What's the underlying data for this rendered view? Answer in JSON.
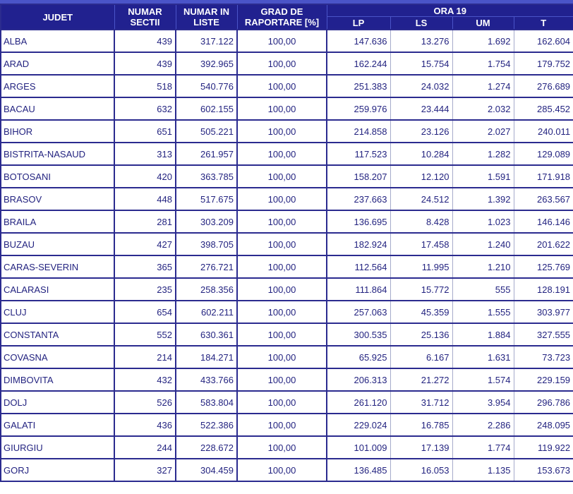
{
  "colors": {
    "header_bg": "#21218F",
    "accent_blue": "#4A54C8",
    "row_border_navy": "#2B2B8F",
    "light_divider": "#A6ABCB",
    "data_text": "#232380"
  },
  "table": {
    "headers": {
      "judet": "JUDET",
      "sectii": "NUMAR SECTII",
      "liste": "NUMAR IN LISTE",
      "grad": "GRAD DE RAPORTARE [%]",
      "ora19": "ORA 19",
      "lp": "LP",
      "ls": "LS",
      "um": "UM",
      "t": "T"
    },
    "rows": [
      {
        "judet": "ALBA",
        "sectii": "439",
        "liste": "317.122",
        "grad": "100,00",
        "lp": "147.636",
        "ls": "13.276",
        "um": "1.692",
        "t": "162.604"
      },
      {
        "judet": "ARAD",
        "sectii": "439",
        "liste": "392.965",
        "grad": "100,00",
        "lp": "162.244",
        "ls": "15.754",
        "um": "1.754",
        "t": "179.752"
      },
      {
        "judet": "ARGES",
        "sectii": "518",
        "liste": "540.776",
        "grad": "100,00",
        "lp": "251.383",
        "ls": "24.032",
        "um": "1.274",
        "t": "276.689"
      },
      {
        "judet": "BACAU",
        "sectii": "632",
        "liste": "602.155",
        "grad": "100,00",
        "lp": "259.976",
        "ls": "23.444",
        "um": "2.032",
        "t": "285.452"
      },
      {
        "judet": "BIHOR",
        "sectii": "651",
        "liste": "505.221",
        "grad": "100,00",
        "lp": "214.858",
        "ls": "23.126",
        "um": "2.027",
        "t": "240.011"
      },
      {
        "judet": "BISTRITA-NASAUD",
        "sectii": "313",
        "liste": "261.957",
        "grad": "100,00",
        "lp": "117.523",
        "ls": "10.284",
        "um": "1.282",
        "t": "129.089"
      },
      {
        "judet": "BOTOSANI",
        "sectii": "420",
        "liste": "363.785",
        "grad": "100,00",
        "lp": "158.207",
        "ls": "12.120",
        "um": "1.591",
        "t": "171.918"
      },
      {
        "judet": "BRASOV",
        "sectii": "448",
        "liste": "517.675",
        "grad": "100,00",
        "lp": "237.663",
        "ls": "24.512",
        "um": "1.392",
        "t": "263.567"
      },
      {
        "judet": "BRAILA",
        "sectii": "281",
        "liste": "303.209",
        "grad": "100,00",
        "lp": "136.695",
        "ls": "8.428",
        "um": "1.023",
        "t": "146.146"
      },
      {
        "judet": "BUZAU",
        "sectii": "427",
        "liste": "398.705",
        "grad": "100,00",
        "lp": "182.924",
        "ls": "17.458",
        "um": "1.240",
        "t": "201.622"
      },
      {
        "judet": "CARAS-SEVERIN",
        "sectii": "365",
        "liste": "276.721",
        "grad": "100,00",
        "lp": "112.564",
        "ls": "11.995",
        "um": "1.210",
        "t": "125.769"
      },
      {
        "judet": "CALARASI",
        "sectii": "235",
        "liste": "258.356",
        "grad": "100,00",
        "lp": "111.864",
        "ls": "15.772",
        "um": "555",
        "t": "128.191"
      },
      {
        "judet": "CLUJ",
        "sectii": "654",
        "liste": "602.211",
        "grad": "100,00",
        "lp": "257.063",
        "ls": "45.359",
        "um": "1.555",
        "t": "303.977"
      },
      {
        "judet": "CONSTANTA",
        "sectii": "552",
        "liste": "630.361",
        "grad": "100,00",
        "lp": "300.535",
        "ls": "25.136",
        "um": "1.884",
        "t": "327.555"
      },
      {
        "judet": "COVASNA",
        "sectii": "214",
        "liste": "184.271",
        "grad": "100,00",
        "lp": "65.925",
        "ls": "6.167",
        "um": "1.631",
        "t": "73.723"
      },
      {
        "judet": "DIMBOVITA",
        "sectii": "432",
        "liste": "433.766",
        "grad": "100,00",
        "lp": "206.313",
        "ls": "21.272",
        "um": "1.574",
        "t": "229.159"
      },
      {
        "judet": "DOLJ",
        "sectii": "526",
        "liste": "583.804",
        "grad": "100,00",
        "lp": "261.120",
        "ls": "31.712",
        "um": "3.954",
        "t": "296.786"
      },
      {
        "judet": "GALATI",
        "sectii": "436",
        "liste": "522.386",
        "grad": "100,00",
        "lp": "229.024",
        "ls": "16.785",
        "um": "2.286",
        "t": "248.095"
      },
      {
        "judet": "GIURGIU",
        "sectii": "244",
        "liste": "228.672",
        "grad": "100,00",
        "lp": "101.009",
        "ls": "17.139",
        "um": "1.774",
        "t": "119.922"
      },
      {
        "judet": "GORJ",
        "sectii": "327",
        "liste": "304.459",
        "grad": "100,00",
        "lp": "136.485",
        "ls": "16.053",
        "um": "1.135",
        "t": "153.673"
      }
    ]
  }
}
